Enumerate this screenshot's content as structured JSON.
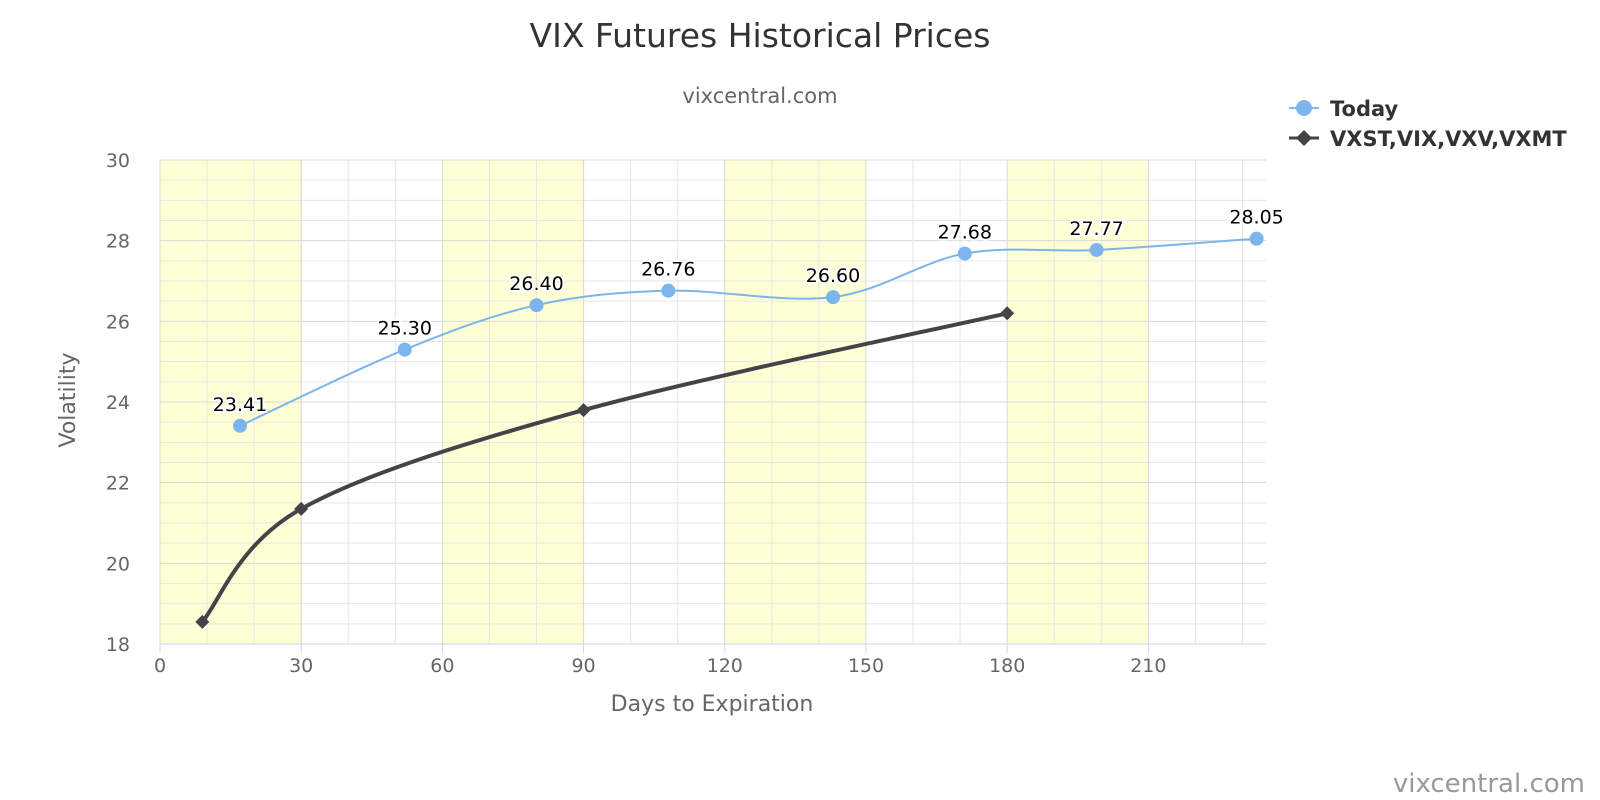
{
  "chart_data": {
    "type": "line",
    "title": "VIX Futures Historical Prices",
    "subtitle": "vixcentral.com",
    "xlabel": "Days to Expiration",
    "ylabel": "Volatility",
    "xlim": [
      0,
      235
    ],
    "ylim": [
      18,
      30
    ],
    "x_ticks": [
      0,
      30,
      60,
      90,
      120,
      150,
      180,
      210
    ],
    "y_ticks": [
      18,
      20,
      22,
      24,
      26,
      28,
      30
    ],
    "grid": true,
    "bands": [
      [
        0,
        30
      ],
      [
        60,
        90
      ],
      [
        120,
        150
      ],
      [
        180,
        210
      ]
    ],
    "band_color": "#ffffd5",
    "legend_position": "top-right",
    "series": [
      {
        "name": "Today",
        "marker": "circle",
        "color": "#7cb5ec",
        "x": [
          17,
          52,
          80,
          108,
          143,
          171,
          199,
          233
        ],
        "y": [
          23.41,
          25.3,
          26.4,
          26.76,
          26.6,
          27.68,
          27.77,
          28.05
        ],
        "labels": [
          "23.41",
          "25.30",
          "26.40",
          "26.76",
          "26.60",
          "27.68",
          "27.77",
          "28.05"
        ]
      },
      {
        "name": "VXST,VIX,VXV,VXMT",
        "marker": "diamond",
        "color": "#434348",
        "x": [
          9,
          30,
          90,
          180
        ],
        "y": [
          18.55,
          21.35,
          23.8,
          26.2
        ]
      }
    ],
    "credits": "vixcentral.com"
  }
}
